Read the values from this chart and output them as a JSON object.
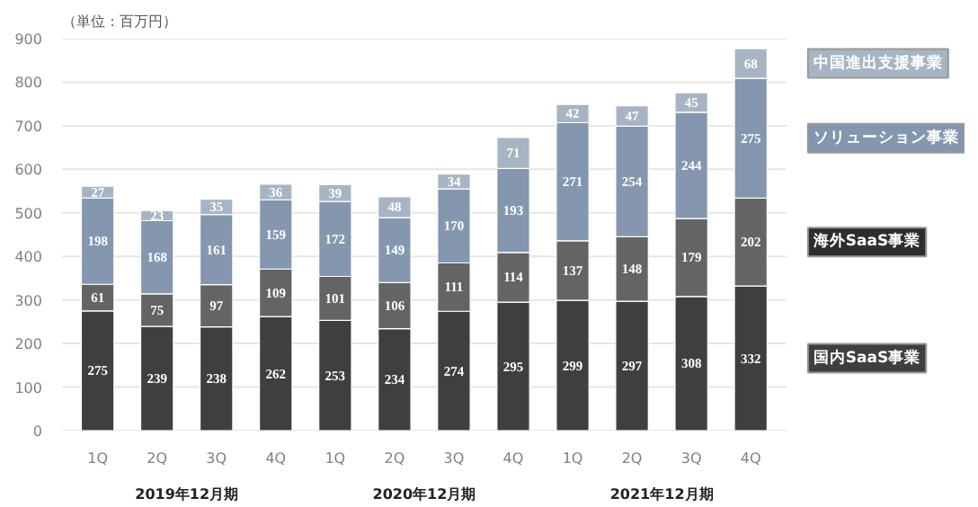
{
  "chart_data": {
    "type": "bar",
    "stacked": true,
    "data_labels": true,
    "grid": "y",
    "categories": [
      "1Q",
      "2Q",
      "3Q",
      "4Q",
      "1Q",
      "2Q",
      "3Q",
      "4Q",
      "1Q",
      "2Q",
      "3Q",
      "4Q"
    ],
    "ylim": [
      0,
      900
    ],
    "yticks": [
      0,
      100,
      200,
      300,
      400,
      500,
      600,
      700,
      800,
      900
    ],
    "annotations": [
      "（単位：百万円）",
      "2019年12月期",
      "2020年12月期",
      "2021年12月期"
    ],
    "series": [
      {
        "name": "国内SaaS事業",
        "color": "#3f3f3f",
        "values": [
          275,
          239,
          238,
          262,
          253,
          234,
          274,
          295,
          299,
          297,
          308,
          332
        ]
      },
      {
        "name": "海外SaaS事業",
        "color": "#646464",
        "values": [
          61,
          75,
          97,
          109,
          101,
          106,
          111,
          114,
          137,
          148,
          179,
          202
        ]
      },
      {
        "name": "ソリューション事業",
        "color": "#8497ae",
        "values": [
          198,
          168,
          161,
          159,
          172,
          149,
          170,
          193,
          271,
          254,
          244,
          275
        ]
      },
      {
        "name": "中国進出支援事業",
        "color": "#a7b4c4",
        "values": [
          27,
          23,
          35,
          36,
          39,
          48,
          34,
          71,
          42,
          47,
          45,
          68
        ]
      }
    ]
  }
}
